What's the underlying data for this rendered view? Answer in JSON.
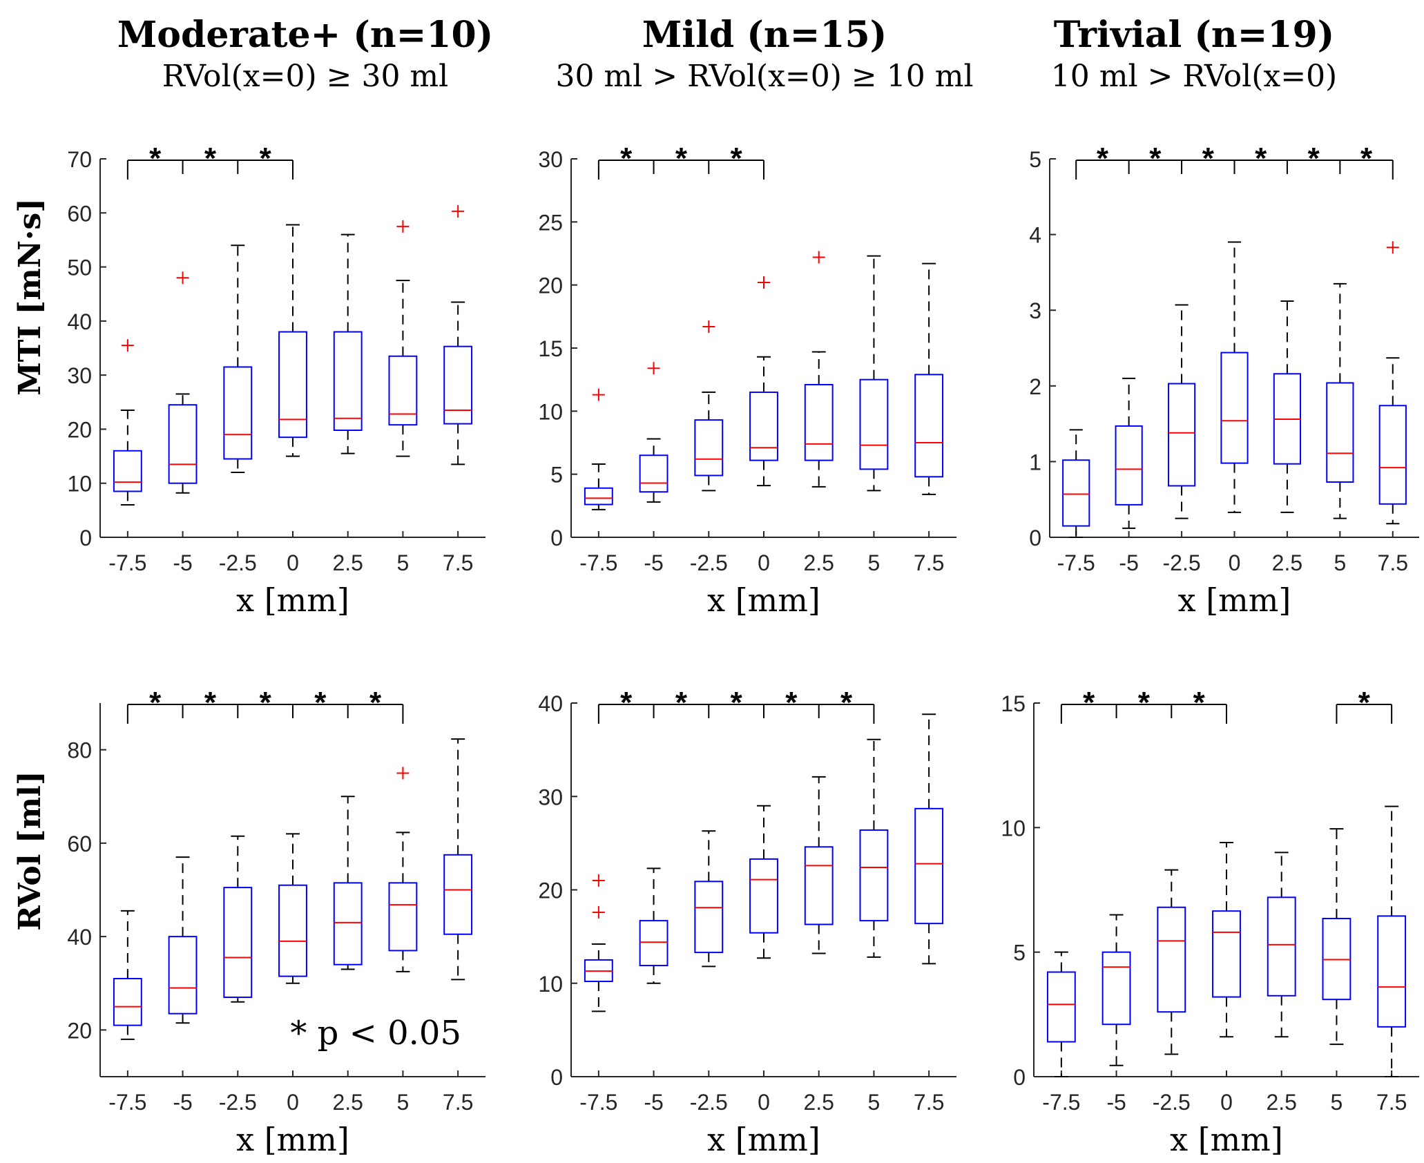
{
  "columns": [
    {
      "title": "Moderate+ (n=10)",
      "subtitle": "RVol(x=0) ≥ 30 ml"
    },
    {
      "title": "Mild (n=15)",
      "subtitle": "30 ml > RVol(x=0) ≥ 10 ml"
    },
    {
      "title": "Trivial (n=19)",
      "subtitle": "10 ml > RVol(x=0)"
    }
  ],
  "row_labels": [
    "MTI [mN·s]",
    "RVol [ml]"
  ],
  "annotation": "* p < 0.05",
  "colors": {
    "box": "#0000ff",
    "median": "#ff0000",
    "outlier": "#ff0000",
    "whisker": "#000000",
    "axis": "#262626"
  },
  "chart_data": [
    {
      "type": "box",
      "id": "mti-moderate",
      "categories": [
        "-7.5",
        "-5",
        "-2.5",
        "0",
        "2.5",
        "5",
        "7.5"
      ],
      "xlabel": "x [mm]",
      "ylabel": "MTI [mN·s]",
      "ylim": [
        0,
        70
      ],
      "yticks": [
        "0",
        "10",
        "20",
        "30",
        "40",
        "50",
        "60",
        "70"
      ],
      "boxes": [
        {
          "q1": 8.5,
          "median": 10.2,
          "q3": 16,
          "whisker_low": 6,
          "whisker_high": 23.5,
          "outliers": [
            35.5
          ]
        },
        {
          "q1": 10,
          "median": 13.5,
          "q3": 24.5,
          "whisker_low": 8.2,
          "whisker_high": 26.5,
          "outliers": [
            48
          ]
        },
        {
          "q1": 14.5,
          "median": 19,
          "q3": 31.5,
          "whisker_low": 12,
          "whisker_high": 54,
          "outliers": []
        },
        {
          "q1": 18.5,
          "median": 21.8,
          "q3": 38,
          "whisker_low": 15,
          "whisker_high": 57.8,
          "outliers": []
        },
        {
          "q1": 19.8,
          "median": 22,
          "q3": 38,
          "whisker_low": 15.5,
          "whisker_high": 56,
          "outliers": []
        },
        {
          "q1": 20.8,
          "median": 22.8,
          "q3": 33.5,
          "whisker_low": 15,
          "whisker_high": 47.5,
          "outliers": [
            57.5
          ]
        },
        {
          "q1": 21,
          "median": 23.5,
          "q3": 35.3,
          "whisker_low": 13.5,
          "whisker_high": 43.5,
          "outliers": [
            60.3
          ]
        }
      ],
      "significance": {
        "start": 0,
        "end": 3,
        "stars": [
          "*",
          "*",
          "*"
        ]
      }
    },
    {
      "type": "box",
      "id": "mti-mild",
      "categories": [
        "-7.5",
        "-5",
        "-2.5",
        "0",
        "2.5",
        "5",
        "7.5"
      ],
      "xlabel": "x [mm]",
      "ylabel": "",
      "ylim": [
        0,
        30
      ],
      "yticks": [
        "0",
        "5",
        "10",
        "15",
        "20",
        "25",
        "30"
      ],
      "boxes": [
        {
          "q1": 2.6,
          "median": 3.1,
          "q3": 3.9,
          "whisker_low": 2.2,
          "whisker_high": 5.8,
          "outliers": [
            11.3
          ]
        },
        {
          "q1": 3.6,
          "median": 4.3,
          "q3": 6.5,
          "whisker_low": 2.8,
          "whisker_high": 7.8,
          "outliers": [
            13.4
          ]
        },
        {
          "q1": 4.9,
          "median": 6.2,
          "q3": 9.3,
          "whisker_low": 3.7,
          "whisker_high": 11.5,
          "outliers": [
            16.7
          ]
        },
        {
          "q1": 6.1,
          "median": 7.1,
          "q3": 11.5,
          "whisker_low": 4.1,
          "whisker_high": 14.3,
          "outliers": [
            20.2
          ]
        },
        {
          "q1": 6.1,
          "median": 7.4,
          "q3": 12.1,
          "whisker_low": 4,
          "whisker_high": 14.7,
          "outliers": [
            22.2
          ]
        },
        {
          "q1": 5.4,
          "median": 7.3,
          "q3": 12.5,
          "whisker_low": 3.7,
          "whisker_high": 22.3,
          "outliers": []
        },
        {
          "q1": 4.8,
          "median": 7.5,
          "q3": 12.9,
          "whisker_low": 3.4,
          "whisker_high": 21.7,
          "outliers": []
        }
      ],
      "significance": {
        "start": 0,
        "end": 3,
        "stars": [
          "*",
          "*",
          "*"
        ]
      }
    },
    {
      "type": "box",
      "id": "mti-trivial",
      "categories": [
        "-7.5",
        "-5",
        "-2.5",
        "0",
        "2.5",
        "5",
        "7.5"
      ],
      "xlabel": "x [mm]",
      "ylabel": "",
      "ylim": [
        0,
        5
      ],
      "yticks": [
        "0",
        "1",
        "2",
        "3",
        "4",
        "5"
      ],
      "boxes": [
        {
          "q1": 0.15,
          "median": 0.57,
          "q3": 1.02,
          "whisker_low": 0,
          "whisker_high": 1.42,
          "outliers": []
        },
        {
          "q1": 0.43,
          "median": 0.9,
          "q3": 1.47,
          "whisker_low": 0.12,
          "whisker_high": 2.1,
          "outliers": []
        },
        {
          "q1": 0.68,
          "median": 1.38,
          "q3": 2.03,
          "whisker_low": 0.25,
          "whisker_high": 3.07,
          "outliers": []
        },
        {
          "q1": 0.98,
          "median": 1.54,
          "q3": 2.44,
          "whisker_low": 0.33,
          "whisker_high": 3.9,
          "outliers": []
        },
        {
          "q1": 0.97,
          "median": 1.56,
          "q3": 2.16,
          "whisker_low": 0.33,
          "whisker_high": 3.12,
          "outliers": []
        },
        {
          "q1": 0.73,
          "median": 1.11,
          "q3": 2.04,
          "whisker_low": 0.25,
          "whisker_high": 3.35,
          "outliers": []
        },
        {
          "q1": 0.44,
          "median": 0.92,
          "q3": 1.74,
          "whisker_low": 0.18,
          "whisker_high": 2.37,
          "outliers": [
            3.83
          ]
        }
      ],
      "significance": {
        "start": 0,
        "end": 6,
        "stars": [
          "*",
          "*",
          "*",
          "*",
          "*",
          "*"
        ]
      }
    },
    {
      "type": "box",
      "id": "rvol-moderate",
      "categories": [
        "-7.5",
        "-5",
        "-2.5",
        "0",
        "2.5",
        "5",
        "7.5"
      ],
      "xlabel": "x [mm]",
      "ylabel": "RVol [ml]",
      "ylim": [
        10,
        90
      ],
      "yticks": [
        "20",
        "40",
        "60",
        "80"
      ],
      "ytick_values": [
        20,
        40,
        60,
        80
      ],
      "boxes": [
        {
          "q1": 21,
          "median": 25,
          "q3": 31,
          "whisker_low": 18,
          "whisker_high": 45.5,
          "outliers": []
        },
        {
          "q1": 23.5,
          "median": 29,
          "q3": 40,
          "whisker_low": 21.5,
          "whisker_high": 57,
          "outliers": []
        },
        {
          "q1": 27,
          "median": 35.5,
          "q3": 50.5,
          "whisker_low": 26,
          "whisker_high": 61.5,
          "outliers": []
        },
        {
          "q1": 31.5,
          "median": 39,
          "q3": 51,
          "whisker_low": 30,
          "whisker_high": 62,
          "outliers": []
        },
        {
          "q1": 34,
          "median": 43,
          "q3": 51.5,
          "whisker_low": 33,
          "whisker_high": 70,
          "outliers": []
        },
        {
          "q1": 37,
          "median": 46.8,
          "q3": 51.5,
          "whisker_low": 32.5,
          "whisker_high": 62.3,
          "outliers": [
            75
          ]
        },
        {
          "q1": 40.5,
          "median": 50,
          "q3": 57.5,
          "whisker_low": 30.8,
          "whisker_high": 82.3,
          "outliers": []
        }
      ],
      "significance": {
        "start": 0,
        "end": 5,
        "stars": [
          "*",
          "*",
          "*",
          "*",
          "*"
        ]
      }
    },
    {
      "type": "box",
      "id": "rvol-mild",
      "categories": [
        "-7.5",
        "-5",
        "-2.5",
        "0",
        "2.5",
        "5",
        "7.5"
      ],
      "xlabel": "x [mm]",
      "ylabel": "",
      "ylim": [
        0,
        40
      ],
      "yticks": [
        "0",
        "10",
        "20",
        "30",
        "40"
      ],
      "boxes": [
        {
          "q1": 10.2,
          "median": 11.3,
          "q3": 12.5,
          "whisker_low": 7,
          "whisker_high": 14.2,
          "outliers": [
            21,
            17.6
          ]
        },
        {
          "q1": 11.9,
          "median": 14.4,
          "q3": 16.7,
          "whisker_low": 10,
          "whisker_high": 22.3,
          "outliers": []
        },
        {
          "q1": 13.3,
          "median": 18.1,
          "q3": 20.9,
          "whisker_low": 11.8,
          "whisker_high": 26.3,
          "outliers": []
        },
        {
          "q1": 15.4,
          "median": 21.1,
          "q3": 23.3,
          "whisker_low": 12.7,
          "whisker_high": 29,
          "outliers": []
        },
        {
          "q1": 16.3,
          "median": 22.6,
          "q3": 24.6,
          "whisker_low": 13.2,
          "whisker_high": 32.1,
          "outliers": []
        },
        {
          "q1": 16.7,
          "median": 22.4,
          "q3": 26.4,
          "whisker_low": 12.8,
          "whisker_high": 36.1,
          "outliers": []
        },
        {
          "q1": 16.4,
          "median": 22.8,
          "q3": 28.7,
          "whisker_low": 12.1,
          "whisker_high": 38.8,
          "outliers": []
        }
      ],
      "significance": {
        "start": 0,
        "end": 5,
        "stars": [
          "*",
          "*",
          "*",
          "*",
          "*"
        ]
      }
    },
    {
      "type": "box",
      "id": "rvol-trivial",
      "categories": [
        "-7.5",
        "-5",
        "-2.5",
        "0",
        "2.5",
        "5",
        "7.5"
      ],
      "xlabel": "x [mm]",
      "ylabel": "",
      "ylim": [
        0,
        15
      ],
      "yticks": [
        "0",
        "5",
        "10",
        "15"
      ],
      "boxes": [
        {
          "q1": 1.4,
          "median": 2.9,
          "q3": 4.2,
          "whisker_low": 0,
          "whisker_high": 5,
          "outliers": []
        },
        {
          "q1": 2.1,
          "median": 4.4,
          "q3": 5,
          "whisker_low": 0.45,
          "whisker_high": 6.5,
          "outliers": []
        },
        {
          "q1": 2.6,
          "median": 5.45,
          "q3": 6.8,
          "whisker_low": 0.9,
          "whisker_high": 8.3,
          "outliers": []
        },
        {
          "q1": 3.2,
          "median": 5.8,
          "q3": 6.65,
          "whisker_low": 1.6,
          "whisker_high": 9.4,
          "outliers": []
        },
        {
          "q1": 3.25,
          "median": 5.3,
          "q3": 7.2,
          "whisker_low": 1.6,
          "whisker_high": 9,
          "outliers": []
        },
        {
          "q1": 3.1,
          "median": 4.7,
          "q3": 6.35,
          "whisker_low": 1.3,
          "whisker_high": 9.95,
          "outliers": []
        },
        {
          "q1": 2,
          "median": 3.6,
          "q3": 6.45,
          "whisker_low": 0,
          "whisker_high": 10.85,
          "outliers": []
        }
      ],
      "significance": [
        {
          "start": 0,
          "end": 3,
          "stars": [
            "*",
            "*",
            "*"
          ]
        },
        {
          "start": 5,
          "end": 6,
          "stars": [
            "*"
          ]
        }
      ]
    }
  ]
}
